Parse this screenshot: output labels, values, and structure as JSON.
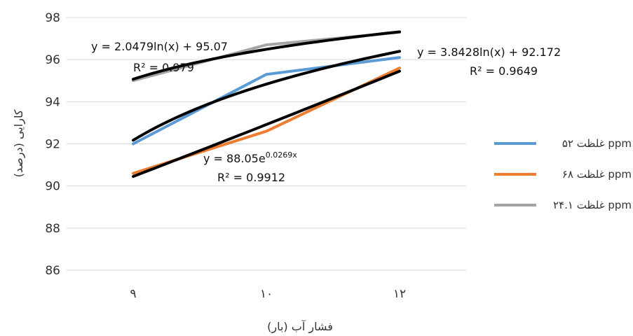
{
  "chart_data": {
    "type": "line",
    "xlabel": "فشار آب (بار)",
    "ylabel": "کارایی (درصد)",
    "categories": [
      "۹",
      "۱۰",
      "۱۲"
    ],
    "ylim": [
      86,
      98
    ],
    "yticks": [
      86,
      88,
      90,
      92,
      94,
      96,
      98
    ],
    "grid": true,
    "legend_position": "right",
    "series": [
      {
        "name": "غلظت ۵۲ ppm",
        "values": [
          92.0,
          95.3,
          96.1
        ],
        "color": "#5B9BD5"
      },
      {
        "name": "غلظت ۶۸ ppm",
        "values": [
          90.6,
          92.6,
          95.6
        ],
        "color": "#ED7D31"
      },
      {
        "name": "غلظت ۲۴.۱ ppm",
        "values": [
          95.0,
          96.7,
          97.3
        ],
        "color": "#A5A5A5"
      }
    ],
    "trendlines": [
      {
        "type": "logarithmic",
        "a": 2.0479,
        "b": 95.07,
        "equation": "y = 2.0479ln(x) + 95.07",
        "r2": "R² = 0.979",
        "color": "#000000"
      },
      {
        "type": "logarithmic",
        "a": 3.8428,
        "b": 92.172,
        "equation": "y = 3.8428ln(x) + 92.172",
        "r2": "R² = 0.9649",
        "color": "#000000"
      },
      {
        "type": "exponential",
        "a": 88.05,
        "b": 0.0269,
        "equation_base": "y = 88.05e",
        "equation_exp": "0.0269x",
        "r2": "R² = 0.9912",
        "color": "#000000"
      }
    ]
  }
}
